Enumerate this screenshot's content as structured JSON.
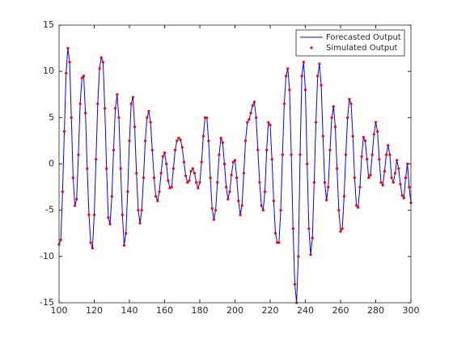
{
  "chart_data": {
    "type": "line",
    "x": [
      100,
      101,
      102,
      103,
      104,
      105,
      106,
      107,
      108,
      109,
      110,
      111,
      112,
      113,
      114,
      115,
      116,
      117,
      118,
      119,
      120,
      121,
      122,
      123,
      124,
      125,
      126,
      127,
      128,
      129,
      130,
      131,
      132,
      133,
      134,
      135,
      136,
      137,
      138,
      139,
      140,
      141,
      142,
      143,
      144,
      145,
      146,
      147,
      148,
      149,
      150,
      151,
      152,
      153,
      154,
      155,
      156,
      157,
      158,
      159,
      160,
      161,
      162,
      163,
      164,
      165,
      166,
      167,
      168,
      169,
      170,
      171,
      172,
      173,
      174,
      175,
      176,
      177,
      178,
      179,
      180,
      181,
      182,
      183,
      184,
      185,
      186,
      187,
      188,
      189,
      190,
      191,
      192,
      193,
      194,
      195,
      196,
      197,
      198,
      199,
      200,
      201,
      202,
      203,
      204,
      205,
      206,
      207,
      208,
      209,
      210,
      211,
      212,
      213,
      214,
      215,
      216,
      217,
      218,
      219,
      220,
      221,
      222,
      223,
      224,
      225,
      226,
      227,
      228,
      229,
      230,
      231,
      232,
      233,
      234,
      235,
      236,
      237,
      238,
      239,
      240,
      241,
      242,
      243,
      244,
      245,
      246,
      247,
      248,
      249,
      250,
      251,
      252,
      253,
      254,
      255,
      256,
      257,
      258,
      259,
      260,
      261,
      262,
      263,
      264,
      265,
      266,
      267,
      268,
      269,
      270,
      271,
      272,
      273,
      274,
      275,
      276,
      277,
      278,
      279,
      280,
      281,
      282,
      283,
      284,
      285,
      286,
      287,
      288,
      289,
      290,
      291,
      292,
      293,
      294,
      295,
      296,
      297,
      298,
      299,
      300
    ],
    "series": [
      {
        "name": "Forecasted Output",
        "color": "#0000ff",
        "values": [
          -8.7,
          -8.2,
          -3,
          3.5,
          9.8,
          12.5,
          11,
          5,
          -1.5,
          -4.5,
          -3.8,
          1,
          6.5,
          9.3,
          9.5,
          5.5,
          -0.5,
          -5.5,
          -8.5,
          -9.1,
          -5.5,
          0.5,
          6.5,
          10.3,
          11.5,
          11,
          6,
          -0.5,
          -5.8,
          -6.5,
          -3.5,
          1.5,
          6,
          7.5,
          5,
          -0.5,
          -5.5,
          -8.8,
          -7.5,
          -3,
          2.5,
          6.5,
          7.2,
          4,
          -1,
          -5,
          -6.4,
          -5,
          -1.5,
          2.5,
          5,
          5.7,
          4.5,
          1.5,
          -1.5,
          -3.5,
          -4,
          -3,
          -1,
          0.8,
          1.2,
          0,
          -1.8,
          -2.6,
          -2.5,
          -0.5,
          1.5,
          2.5,
          2.8,
          2.6,
          1.8,
          0.2,
          -1.3,
          -2,
          -1.8,
          -0.8,
          -0.5,
          -1,
          -2,
          -2.6,
          -2,
          0.2,
          3,
          5,
          5,
          2.5,
          -1.5,
          -4.8,
          -6,
          -5,
          -2,
          1,
          2.8,
          2.3,
          0,
          -2.5,
          -3.8,
          -3,
          -1.2,
          0.2,
          0.4,
          -1.5,
          -4,
          -5.5,
          -4.5,
          -1,
          2.5,
          4.5,
          4.8,
          5.5,
          6.3,
          6.7,
          5,
          1.5,
          -2,
          -4.5,
          -5,
          -3,
          1.5,
          4.5,
          4.2,
          0.5,
          -4,
          -7.5,
          -8.5,
          -8.5,
          -5,
          1,
          6.5,
          9.5,
          10.3,
          8,
          1,
          -7,
          -13,
          -15,
          -10,
          1,
          9.5,
          11,
          8,
          0,
          -7,
          -9.8,
          -8,
          -2,
          4.5,
          9.5,
          10.8,
          8.5,
          3,
          -2,
          -3.9,
          -2.5,
          1.5,
          5,
          6.2,
          4,
          -0.5,
          -5,
          -7.3,
          -7,
          -3.5,
          1,
          5,
          7,
          6.5,
          3,
          -1.5,
          -4.5,
          -4.7,
          -2.5,
          0.8,
          2.9,
          2.5,
          0.5,
          -1.5,
          -1.2,
          1,
          3.2,
          4.5,
          3.5,
          0.5,
          -2,
          -2.3,
          -0.8,
          1,
          2,
          1,
          -1.5,
          -2,
          -1,
          0.4,
          -0.5,
          -2.2,
          -3.4,
          -3.7,
          -1.5,
          0,
          -2.5,
          -4.2
        ]
      },
      {
        "name": "Simulated Output",
        "color": "#ff0000",
        "values": [
          -8.7,
          -8.2,
          -3,
          3.5,
          9.8,
          12.5,
          11,
          5,
          -1.5,
          -4.5,
          -3.8,
          1,
          6.5,
          9.3,
          9.5,
          5.5,
          -0.5,
          -5.5,
          -8.5,
          -9.1,
          -5.5,
          0.5,
          6.5,
          10.3,
          11.5,
          11,
          6,
          -0.5,
          -5.8,
          -6.5,
          -3.5,
          1.5,
          6,
          7.5,
          5,
          -0.5,
          -5.5,
          -8.8,
          -7.5,
          -3,
          2.5,
          6.5,
          7.2,
          4,
          -1,
          -5,
          -6.4,
          -5,
          -1.5,
          2.5,
          5,
          5.7,
          4.5,
          1.5,
          -1.5,
          -3.5,
          -4,
          -3,
          -1,
          0.8,
          1.2,
          0,
          -1.8,
          -2.6,
          -2.5,
          -0.5,
          1.5,
          2.5,
          2.8,
          2.6,
          1.8,
          0.2,
          -1.3,
          -2,
          -1.8,
          -0.8,
          -0.5,
          -1,
          -2,
          -2.6,
          -2,
          0.2,
          3,
          5,
          5,
          2.5,
          -1.5,
          -4.8,
          -6,
          -5,
          -2,
          1,
          2.8,
          2.3,
          0,
          -2.5,
          -3.8,
          -3,
          -1.2,
          0.2,
          0.4,
          -1.5,
          -4,
          -5.5,
          -4.5,
          -1,
          2.5,
          4.5,
          4.8,
          5.5,
          6.3,
          6.7,
          5,
          1.5,
          -2,
          -4.5,
          -5,
          -3,
          1.5,
          4.5,
          4.2,
          0.5,
          -4,
          -7.5,
          -8.5,
          -8.5,
          -5,
          1,
          6.5,
          9.5,
          10.3,
          8,
          1,
          -7,
          -13,
          -15,
          -10,
          1,
          9.5,
          11,
          8,
          0,
          -7,
          -9.8,
          -8,
          -2,
          4.5,
          9.5,
          10.8,
          8.5,
          3,
          -2,
          -3.9,
          -2.5,
          1.5,
          5,
          6.2,
          4,
          -0.5,
          -5,
          -7.3,
          -7,
          -3.5,
          1,
          5,
          7,
          6.5,
          3,
          -1.5,
          -4.5,
          -4.7,
          -2.5,
          0.8,
          2.9,
          2.5,
          0.5,
          -1.5,
          -1.2,
          1,
          3.2,
          4.5,
          3.5,
          0.5,
          -2,
          -2.3,
          -0.8,
          1,
          2,
          1,
          -1.5,
          -2,
          -1,
          0.4,
          -0.5,
          -2.2,
          -3.4,
          -3.7,
          -1.5,
          0,
          -2.5,
          -4.2
        ]
      }
    ],
    "xlim": [
      100,
      300
    ],
    "xticks": [
      100,
      120,
      140,
      160,
      180,
      200,
      220,
      240,
      260,
      280,
      300
    ],
    "ylim": [
      -15,
      15
    ],
    "yticks": [
      -15,
      -10,
      -5,
      0,
      5,
      10,
      15
    ],
    "legend": "northeast",
    "grid": false
  }
}
